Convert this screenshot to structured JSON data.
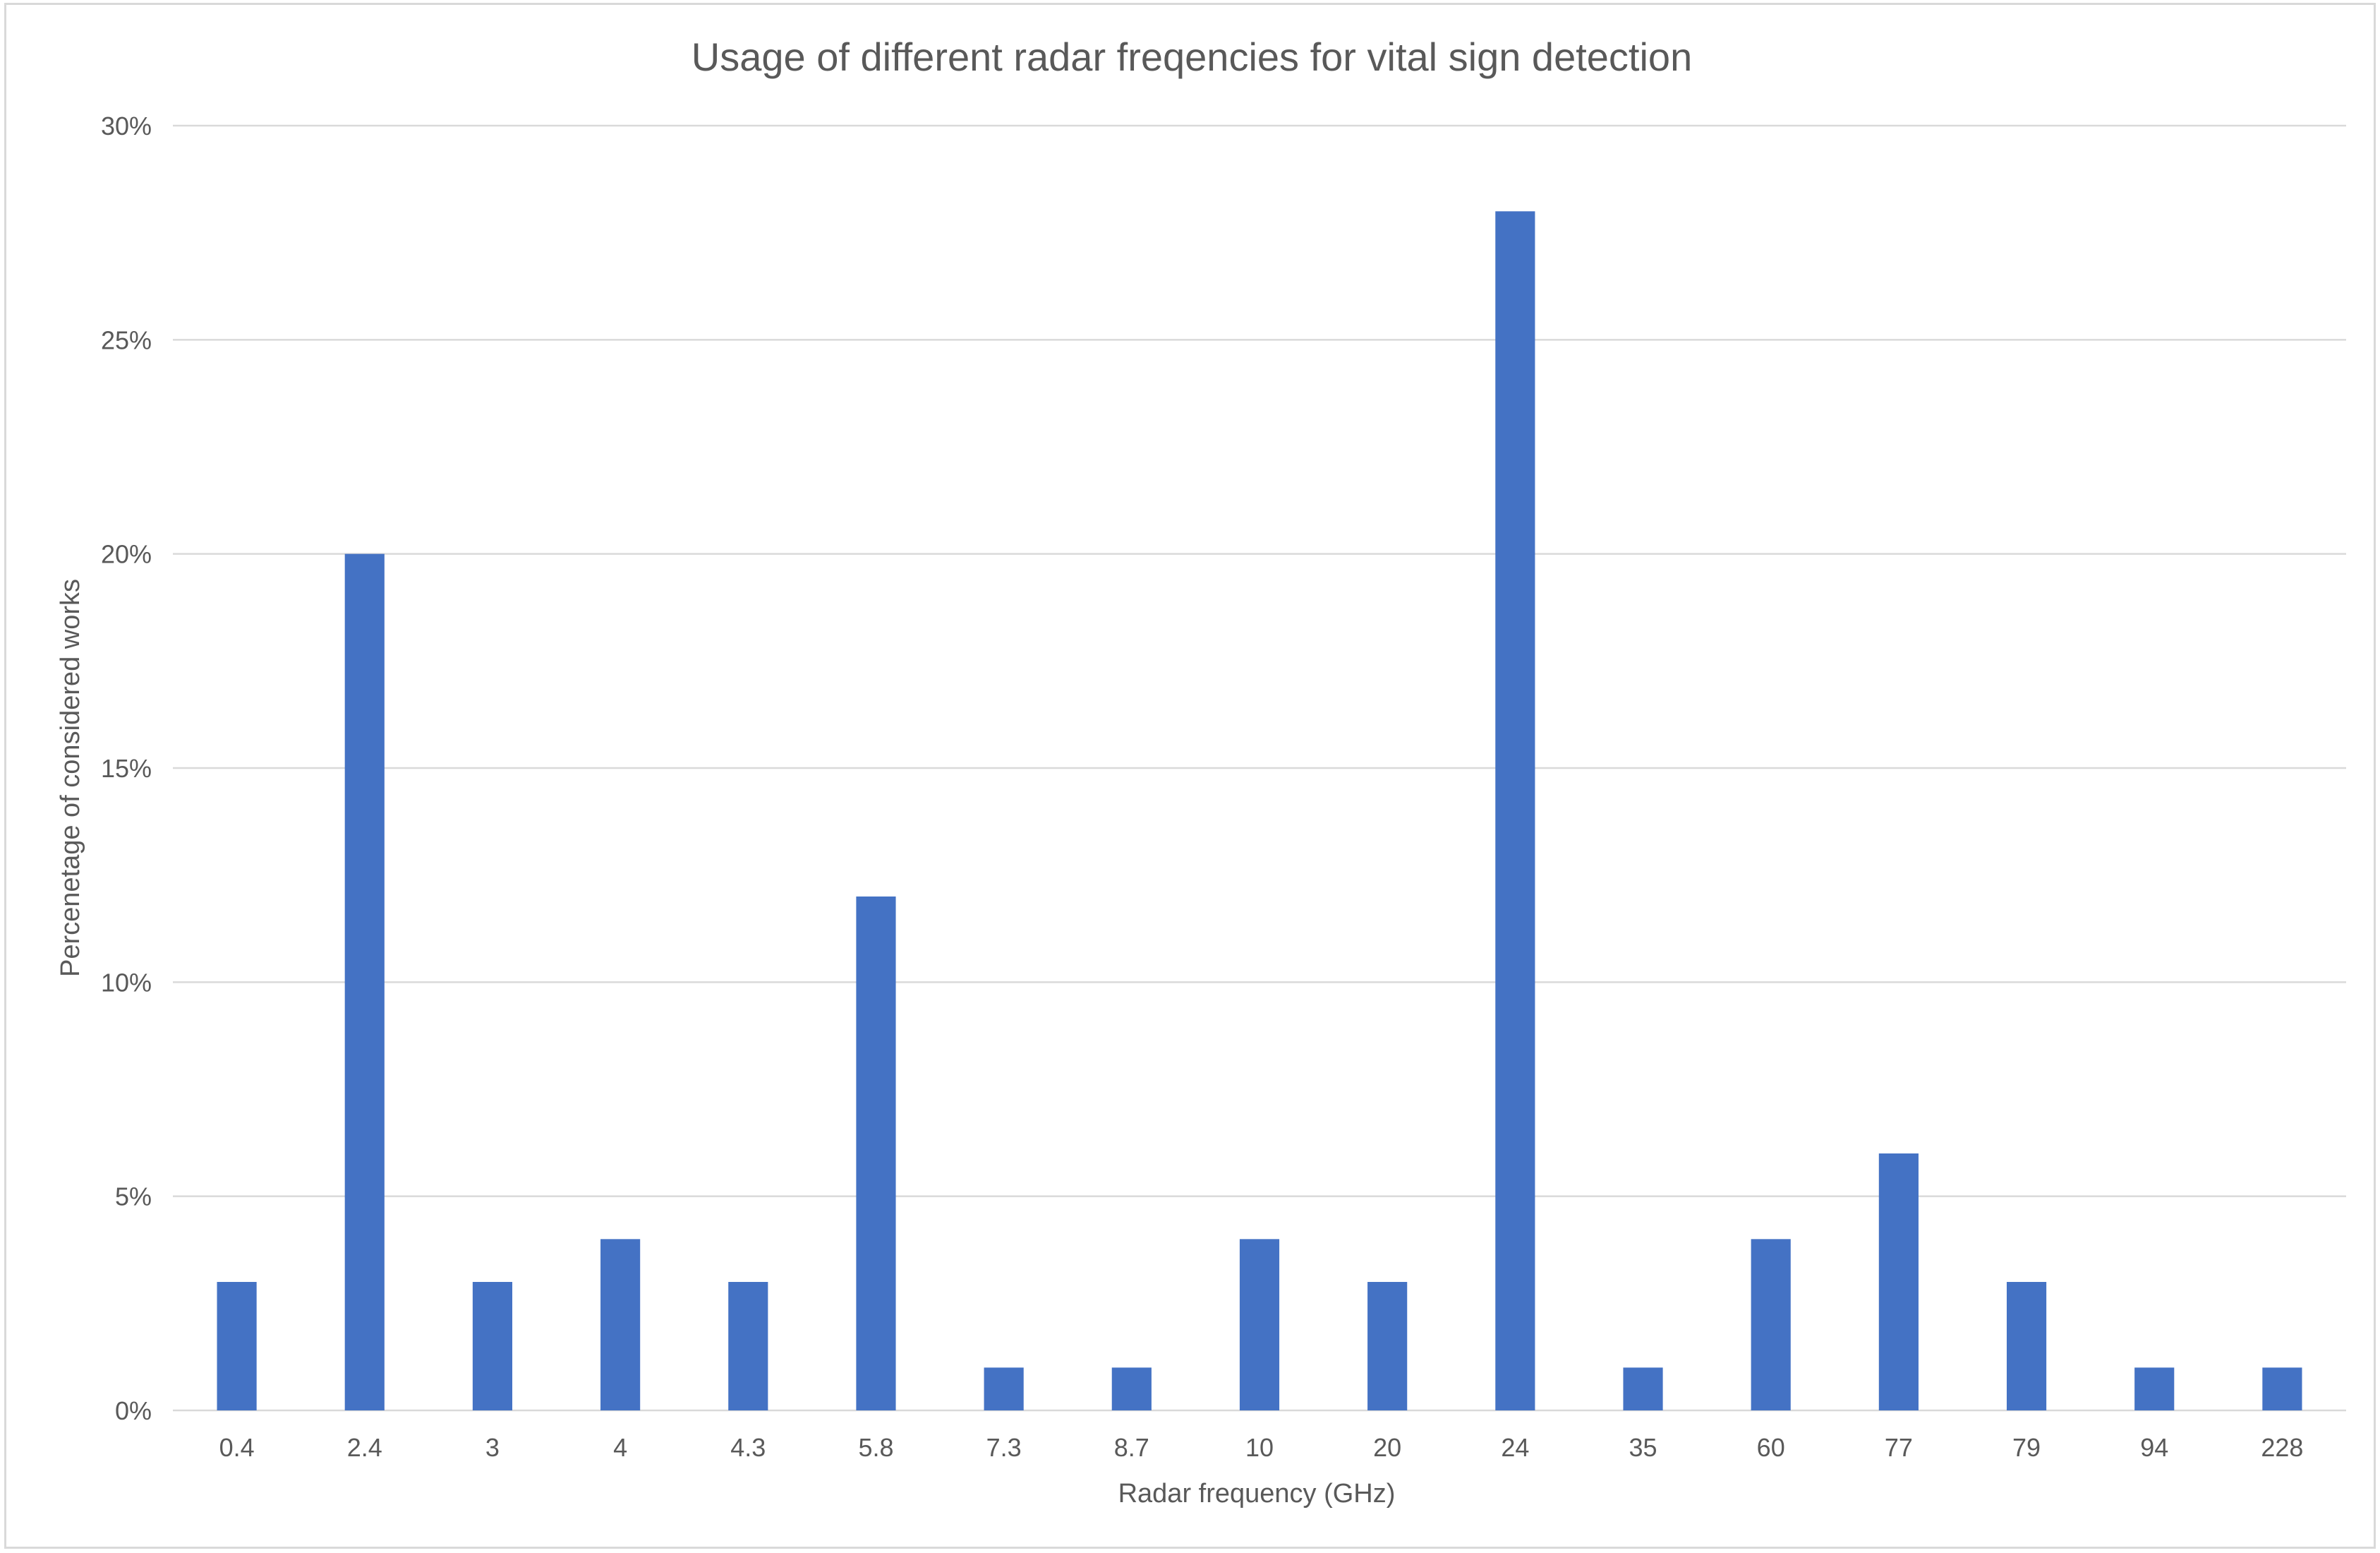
{
  "chart_data": {
    "type": "bar",
    "title": "Usage of different radar freqencies for vital sign detection",
    "xlabel": "Radar frequency (GHz)",
    "ylabel": "Percenetage of considered works",
    "categories": [
      "0.4",
      "2.4",
      "3",
      "4",
      "4.3",
      "5.8",
      "7.3",
      "8.7",
      "10",
      "20",
      "24",
      "35",
      "60",
      "77",
      "79",
      "94",
      "228"
    ],
    "values": [
      3,
      20,
      3,
      4,
      3,
      12,
      1,
      1,
      4,
      3,
      28,
      1,
      4,
      6,
      3,
      1,
      1
    ],
    "ylim": [
      0,
      30
    ],
    "yticks": [
      0,
      5,
      10,
      15,
      20,
      25,
      30
    ],
    "ytick_labels": [
      "0%",
      "5%",
      "10%",
      "15%",
      "20%",
      "25%",
      "30%"
    ],
    "grid": true,
    "legend": "none",
    "colors": {
      "bar": "#4472c4",
      "grid": "#d9d9d9",
      "text": "#595959",
      "frame": "#d9d9d9"
    }
  }
}
